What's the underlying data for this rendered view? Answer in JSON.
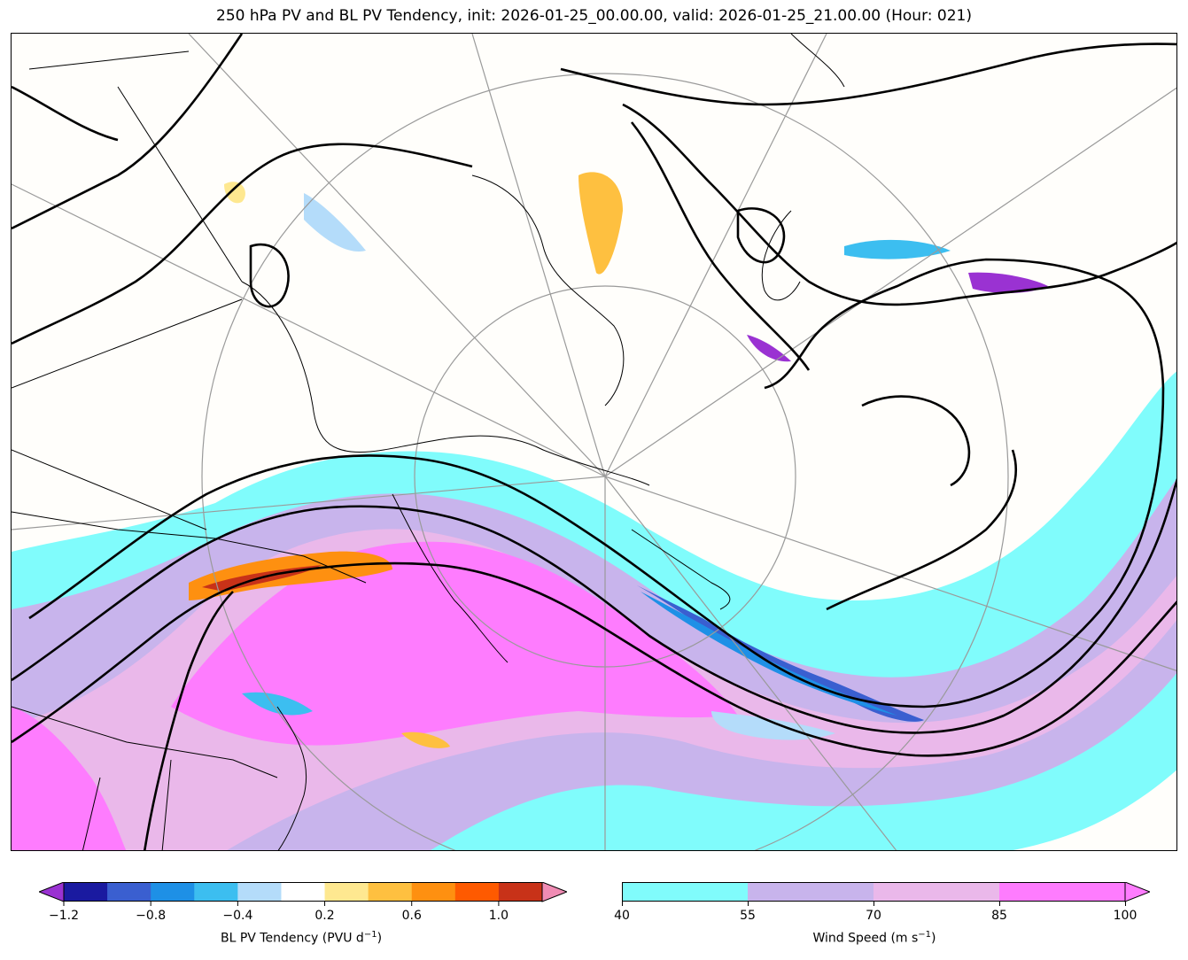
{
  "title": "250 hPa PV and BL PV Tendency, init: 2026-01-25_00.00.00, valid: 2026-01-25_21.00.00 (Hour: 021)",
  "colors": {
    "wind_40_55": "#80fcfc",
    "wind_55_70": "#c8b4ec",
    "wind_70_85": "#eab8ea",
    "wind_85_100": "#fe7cfe",
    "pv_contour": "#000000",
    "land_border": "#000000",
    "graticule": "#9a9a9a"
  },
  "pv_colorbar": {
    "label_main": "BL PV Tendency (PVU d",
    "label_exp": "−1",
    "label_close": ")",
    "ticks": [
      "−1.2",
      "−0.8",
      "−0.4",
      "0.2",
      "0.6",
      "1.0"
    ],
    "tick_values": [
      -1.2,
      -0.8,
      -0.4,
      0.2,
      0.6,
      1.0
    ],
    "bounds": [
      -1.2,
      -1.0,
      -0.8,
      -0.6,
      -0.4,
      -0.2,
      0.2,
      0.4,
      0.6,
      0.8,
      1.0,
      1.2
    ],
    "colors": [
      "#1a1aa0",
      "#3a5fd0",
      "#1e90e6",
      "#3cbef0",
      "#b4dcfa",
      "#ffffff",
      "#fee890",
      "#fec040",
      "#fe9010",
      "#fe5a00",
      "#c83218"
    ],
    "under_color": "#9a32d2",
    "over_color": "#f08cb4"
  },
  "wind_colorbar": {
    "label_main": "Wind Speed (m s",
    "label_exp": "−1",
    "label_close": ")",
    "ticks": [
      "40",
      "55",
      "70",
      "85",
      "100"
    ],
    "tick_values": [
      40,
      55,
      70,
      85,
      100
    ],
    "colors": [
      "#80fcfc",
      "#c8b4ec",
      "#eab8ea",
      "#fe7cfe"
    ],
    "over_color": "#fe7cfe"
  }
}
